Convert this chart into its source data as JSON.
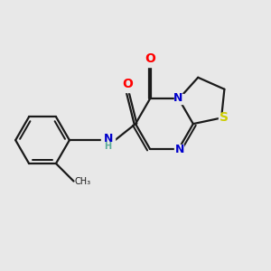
{
  "bg_color": "#e8e8e8",
  "bond_color": "#1a1a1a",
  "atom_colors": {
    "O": "#ff0000",
    "N": "#0000cc",
    "S": "#cccc00",
    "H": "#5aaa99",
    "C": "#1a1a1a"
  },
  "bond_width": 1.6,
  "figsize": [
    3.0,
    3.0
  ],
  "dpi": 100
}
